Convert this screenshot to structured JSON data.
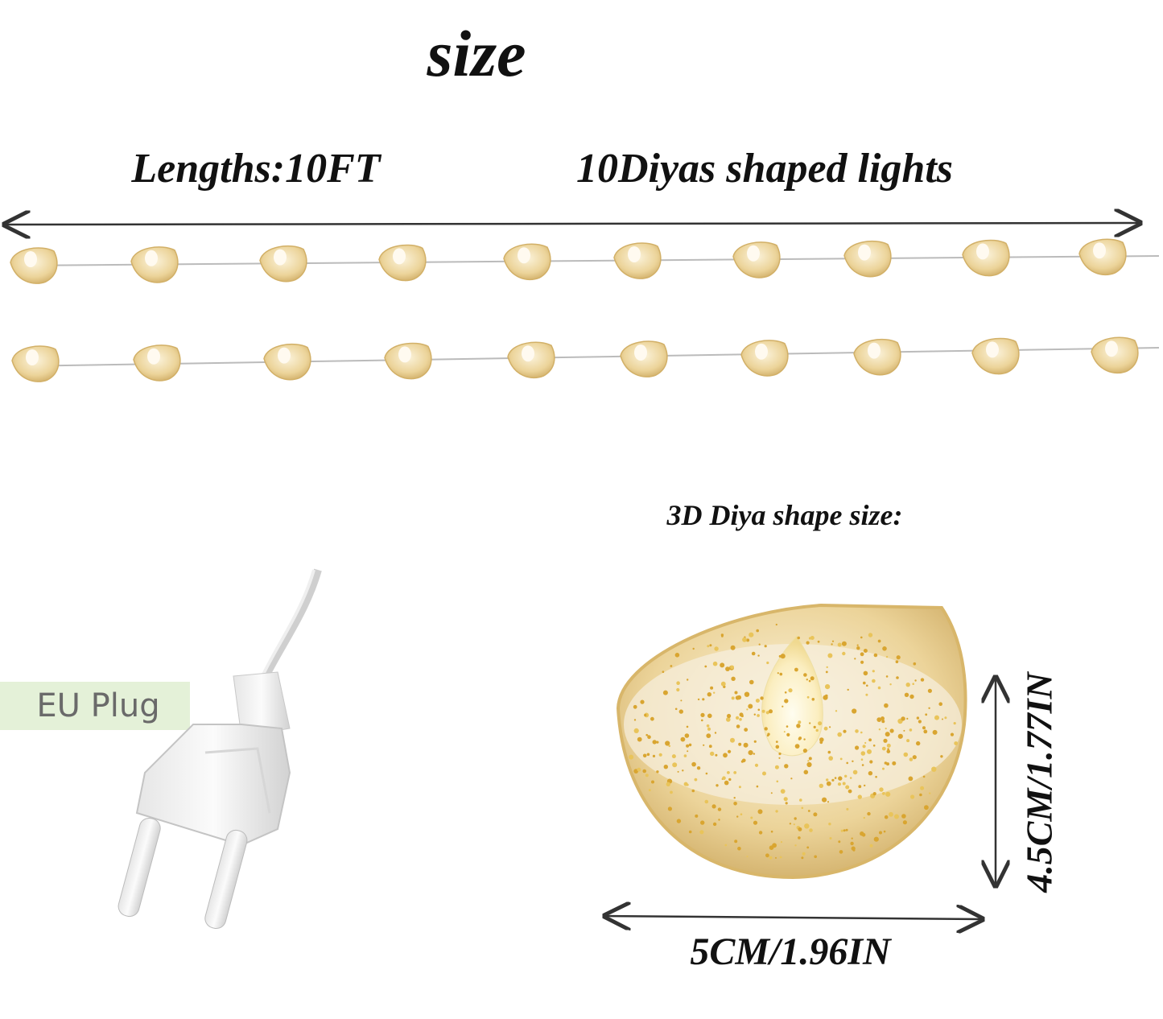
{
  "header": {
    "title": "size"
  },
  "string_lights": {
    "length_label": "Lengths:10FT",
    "count_label": "10Diyas shaped lights"
  },
  "plug": {
    "label": "EU Plug"
  },
  "diya": {
    "caption": "3D Diya shape size:",
    "height_label": "4.5CM/1.77IN",
    "width_label": "5CM/1.96IN"
  }
}
